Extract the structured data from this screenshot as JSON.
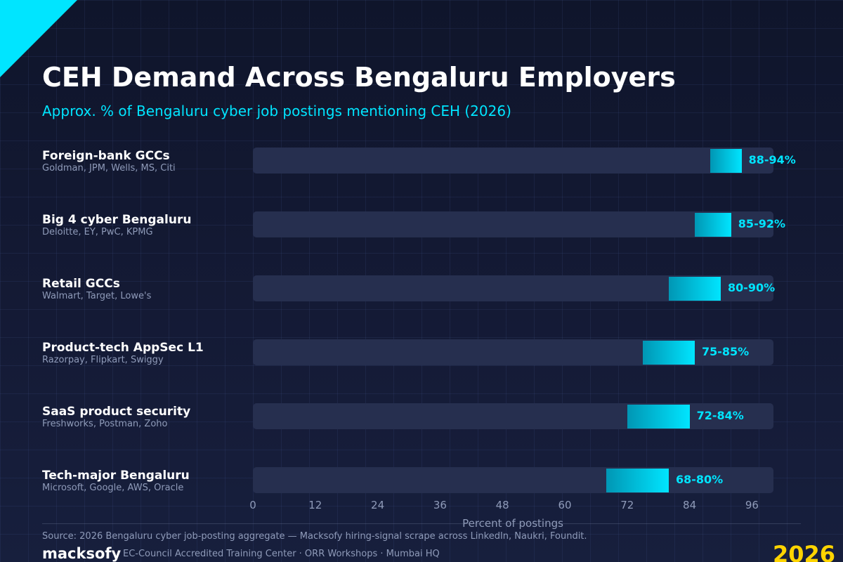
{
  "title": "CEH Demand Across Bengaluru Employers",
  "subtitle": "Approx. % of Bengaluru cyber job postings mentioning CEH (2026)",
  "colors": {
    "accent": "#00e5ff",
    "bar_start": "#0096b4",
    "track": "#262f4f",
    "year": "#ffd400"
  },
  "chart_data": {
    "type": "bar",
    "orientation": "horizontal",
    "title": "CEH Demand Across Bengaluru Employers",
    "subtitle": "Approx. % of Bengaluru cyber job postings mentioning CEH (2026)",
    "xlabel": "Percent of postings",
    "ylabel": "",
    "xlim": [
      0,
      100
    ],
    "ticks": [
      0,
      12,
      24,
      36,
      48,
      60,
      72,
      84,
      96
    ],
    "grid": false,
    "categories": [
      {
        "name": "Foreign-bank GCCs",
        "sub": "Goldman, JPM, Wells, MS, Citi",
        "low": 88,
        "high": 94,
        "label": "88-94%"
      },
      {
        "name": "Big 4 cyber Bengaluru",
        "sub": "Deloitte, EY, PwC, KPMG",
        "low": 85,
        "high": 92,
        "label": "85-92%"
      },
      {
        "name": "Retail GCCs",
        "sub": "Walmart, Target, Lowe's",
        "low": 80,
        "high": 90,
        "label": "80-90%"
      },
      {
        "name": "Product-tech AppSec L1",
        "sub": "Razorpay, Flipkart, Swiggy",
        "low": 75,
        "high": 85,
        "label": "75-85%"
      },
      {
        "name": "SaaS product security",
        "sub": "Freshworks, Postman, Zoho",
        "low": 72,
        "high": 84,
        "label": "72-84%"
      },
      {
        "name": "Tech-major Bengaluru",
        "sub": "Microsoft, Google, AWS, Oracle",
        "low": 68,
        "high": 80,
        "label": "68-80%"
      }
    ]
  },
  "footer": {
    "source": "Source: 2026 Bengaluru cyber job-posting aggregate — Macksofy hiring-signal scrape across LinkedIn, Naukri, Foundit.",
    "brand": "macksofy",
    "tagline": "EC-Council Accredited Training Center · ORR Workshops · Mumbai HQ",
    "year": "2026"
  }
}
